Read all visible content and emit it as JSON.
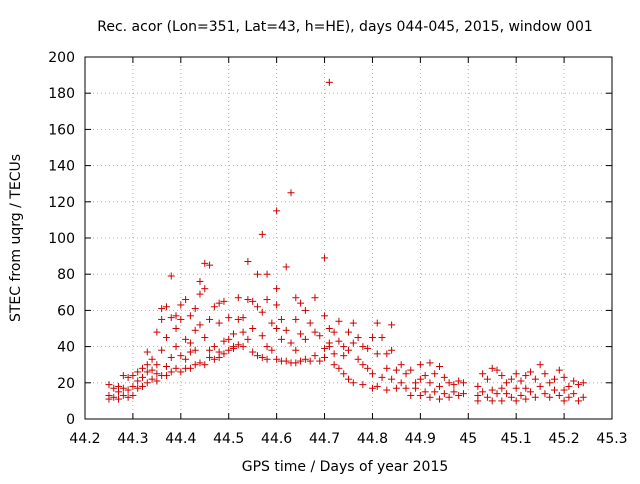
{
  "chart_data": {
    "type": "scatter",
    "title": "Rec. acor (Lon=351, Lat=43, h=HE), days 044-045, 2015, window 001",
    "xlabel": "GPS time / Days of year 2015",
    "ylabel": "STEC from uqrg / TECUs",
    "xlim": [
      44.2,
      45.3
    ],
    "ylim": [
      0,
      200
    ],
    "xticks": [
      "44.2",
      "44.3",
      "44.4",
      "44.5",
      "44.6",
      "44.7",
      "44.8",
      "44.9",
      "45",
      "45.1",
      "45.2",
      "45.3"
    ],
    "yticks": [
      "0",
      "20",
      "40",
      "60",
      "80",
      "100",
      "120",
      "140",
      "160",
      "180",
      "200"
    ],
    "grid": true,
    "marker": "+",
    "color": "#cc0000",
    "series": [
      {
        "name": "STEC",
        "points": [
          [
            44.25,
            19
          ],
          [
            44.25,
            13
          ],
          [
            44.25,
            11
          ],
          [
            44.26,
            17
          ],
          [
            44.26,
            12
          ],
          [
            44.27,
            15
          ],
          [
            44.27,
            11
          ],
          [
            44.27,
            18
          ],
          [
            44.28,
            24
          ],
          [
            44.28,
            13
          ],
          [
            44.28,
            17
          ],
          [
            44.29,
            23
          ],
          [
            44.29,
            12
          ],
          [
            44.29,
            16
          ],
          [
            44.3,
            24
          ],
          [
            44.3,
            13
          ],
          [
            44.3,
            18
          ],
          [
            44.31,
            17
          ],
          [
            44.31,
            21
          ],
          [
            44.31,
            26
          ],
          [
            44.32,
            18
          ],
          [
            44.32,
            23
          ],
          [
            44.32,
            28
          ],
          [
            44.33,
            20
          ],
          [
            44.33,
            26
          ],
          [
            44.33,
            30
          ],
          [
            44.33,
            37
          ],
          [
            44.34,
            22
          ],
          [
            44.34,
            27
          ],
          [
            44.34,
            33
          ],
          [
            44.35,
            21
          ],
          [
            44.35,
            25
          ],
          [
            44.35,
            48
          ],
          [
            44.35,
            30
          ],
          [
            44.36,
            61
          ],
          [
            44.36,
            55
          ],
          [
            44.36,
            24
          ],
          [
            44.36,
            38
          ],
          [
            44.37,
            62
          ],
          [
            44.37,
            45
          ],
          [
            44.37,
            24
          ],
          [
            44.37,
            29
          ],
          [
            44.38,
            79
          ],
          [
            44.38,
            56
          ],
          [
            44.38,
            26
          ],
          [
            44.38,
            34
          ],
          [
            44.39,
            50
          ],
          [
            44.39,
            28
          ],
          [
            44.39,
            40
          ],
          [
            44.39,
            57
          ],
          [
            44.4,
            63
          ],
          [
            44.4,
            55
          ],
          [
            44.4,
            26
          ],
          [
            44.4,
            35
          ],
          [
            44.41,
            66
          ],
          [
            44.41,
            44
          ],
          [
            44.41,
            28
          ],
          [
            44.41,
            33
          ],
          [
            44.42,
            57
          ],
          [
            44.42,
            42
          ],
          [
            44.42,
            28
          ],
          [
            44.42,
            37
          ],
          [
            44.43,
            61
          ],
          [
            44.43,
            49
          ],
          [
            44.43,
            30
          ],
          [
            44.43,
            38
          ],
          [
            44.44,
            76
          ],
          [
            44.44,
            69
          ],
          [
            44.44,
            52
          ],
          [
            44.44,
            31
          ],
          [
            44.45,
            86
          ],
          [
            44.45,
            72
          ],
          [
            44.45,
            45
          ],
          [
            44.45,
            30
          ],
          [
            44.46,
            85
          ],
          [
            44.46,
            55
          ],
          [
            44.46,
            38
          ],
          [
            44.46,
            34
          ],
          [
            44.47,
            62
          ],
          [
            44.47,
            40
          ],
          [
            44.47,
            33
          ],
          [
            44.48,
            64
          ],
          [
            44.48,
            53
          ],
          [
            44.48,
            37
          ],
          [
            44.48,
            34
          ],
          [
            44.49,
            65
          ],
          [
            44.49,
            43
          ],
          [
            44.49,
            36
          ],
          [
            44.5,
            56
          ],
          [
            44.5,
            44
          ],
          [
            44.5,
            38
          ],
          [
            44.51,
            47
          ],
          [
            44.51,
            40
          ],
          [
            44.51,
            39
          ],
          [
            44.52,
            67
          ],
          [
            44.52,
            55
          ],
          [
            44.52,
            41
          ],
          [
            44.53,
            56
          ],
          [
            44.53,
            48
          ],
          [
            44.53,
            40
          ],
          [
            44.54,
            87
          ],
          [
            44.54,
            66
          ],
          [
            44.54,
            44
          ],
          [
            44.55,
            65
          ],
          [
            44.55,
            50
          ],
          [
            44.55,
            37
          ],
          [
            44.56,
            80
          ],
          [
            44.56,
            62
          ],
          [
            44.56,
            35
          ],
          [
            44.57,
            102
          ],
          [
            44.57,
            59
          ],
          [
            44.57,
            46
          ],
          [
            44.57,
            34
          ],
          [
            44.58,
            80
          ],
          [
            44.58,
            66
          ],
          [
            44.58,
            40
          ],
          [
            44.58,
            33
          ],
          [
            44.59,
            53
          ],
          [
            44.59,
            38
          ],
          [
            44.6,
            115
          ],
          [
            44.6,
            72
          ],
          [
            44.6,
            63
          ],
          [
            44.6,
            50
          ],
          [
            44.6,
            33
          ],
          [
            44.61,
            55
          ],
          [
            44.61,
            44
          ],
          [
            44.61,
            32
          ],
          [
            44.62,
            84
          ],
          [
            44.62,
            49
          ],
          [
            44.62,
            32
          ],
          [
            44.63,
            125
          ],
          [
            44.63,
            42
          ],
          [
            44.63,
            31
          ],
          [
            44.64,
            67
          ],
          [
            44.64,
            55
          ],
          [
            44.64,
            38
          ],
          [
            44.64,
            31
          ],
          [
            44.65,
            64
          ],
          [
            44.65,
            47
          ],
          [
            44.65,
            32
          ],
          [
            44.66,
            60
          ],
          [
            44.66,
            44
          ],
          [
            44.66,
            33
          ],
          [
            44.67,
            53
          ],
          [
            44.67,
            32
          ],
          [
            44.68,
            67
          ],
          [
            44.68,
            48
          ],
          [
            44.68,
            35
          ],
          [
            44.69,
            46
          ],
          [
            44.69,
            32
          ],
          [
            44.7,
            89
          ],
          [
            44.7,
            57
          ],
          [
            44.7,
            39
          ],
          [
            44.7,
            34
          ],
          [
            44.71,
            186
          ],
          [
            44.71,
            50
          ],
          [
            44.71,
            42
          ],
          [
            44.71,
            40
          ],
          [
            44.72,
            48
          ],
          [
            44.72,
            36
          ],
          [
            44.72,
            30
          ],
          [
            44.73,
            54
          ],
          [
            44.73,
            43
          ],
          [
            44.73,
            28
          ],
          [
            44.74,
            40
          ],
          [
            44.74,
            35
          ],
          [
            44.74,
            25
          ],
          [
            44.75,
            48
          ],
          [
            44.75,
            38
          ],
          [
            44.75,
            22
          ],
          [
            44.76,
            53
          ],
          [
            44.76,
            42
          ],
          [
            44.76,
            20
          ],
          [
            44.77,
            45
          ],
          [
            44.77,
            33
          ],
          [
            44.78,
            40
          ],
          [
            44.78,
            30
          ],
          [
            44.78,
            19
          ],
          [
            44.79,
            39
          ],
          [
            44.79,
            28
          ],
          [
            44.8,
            45
          ],
          [
            44.8,
            25
          ],
          [
            44.8,
            17
          ],
          [
            44.81,
            53
          ],
          [
            44.81,
            36
          ],
          [
            44.81,
            18
          ],
          [
            44.82,
            45
          ],
          [
            44.82,
            23
          ],
          [
            44.83,
            36
          ],
          [
            44.83,
            28
          ],
          [
            44.83,
            16
          ],
          [
            44.84,
            52
          ],
          [
            44.84,
            38
          ],
          [
            44.84,
            22
          ],
          [
            44.85,
            27
          ],
          [
            44.85,
            17
          ],
          [
            44.86,
            30
          ],
          [
            44.86,
            20
          ],
          [
            44.87,
            25
          ],
          [
            44.87,
            17
          ],
          [
            44.88,
            27
          ],
          [
            44.88,
            13
          ],
          [
            44.89,
            20
          ],
          [
            44.89,
            17
          ],
          [
            44.9,
            30
          ],
          [
            44.9,
            22
          ],
          [
            44.9,
            13
          ],
          [
            44.91,
            24
          ],
          [
            44.91,
            15
          ],
          [
            44.92,
            31
          ],
          [
            44.92,
            20
          ],
          [
            44.92,
            12
          ],
          [
            44.93,
            25
          ],
          [
            44.93,
            15
          ],
          [
            44.94,
            29
          ],
          [
            44.94,
            18
          ],
          [
            44.94,
            11
          ],
          [
            44.95,
            23
          ],
          [
            44.95,
            14
          ],
          [
            44.96,
            20
          ],
          [
            44.96,
            12
          ],
          [
            44.97,
            19
          ],
          [
            44.97,
            15
          ],
          [
            44.98,
            21
          ],
          [
            44.98,
            13
          ],
          [
            44.99,
            20
          ],
          [
            44.99,
            14
          ],
          [
            45.02,
            18
          ],
          [
            45.02,
            13
          ],
          [
            45.02,
            10
          ],
          [
            45.03,
            25
          ],
          [
            45.03,
            15
          ],
          [
            45.04,
            22
          ],
          [
            45.04,
            12
          ],
          [
            45.05,
            28
          ],
          [
            45.05,
            16
          ],
          [
            45.05,
            10
          ],
          [
            45.06,
            27
          ],
          [
            45.06,
            14
          ],
          [
            45.07,
            24
          ],
          [
            45.07,
            17
          ],
          [
            45.07,
            10
          ],
          [
            45.08,
            20
          ],
          [
            45.08,
            14
          ],
          [
            45.09,
            22
          ],
          [
            45.09,
            12
          ],
          [
            45.1,
            25
          ],
          [
            45.1,
            17
          ],
          [
            45.1,
            10
          ],
          [
            45.11,
            21
          ],
          [
            45.11,
            13
          ],
          [
            45.12,
            24
          ],
          [
            45.12,
            17
          ],
          [
            45.12,
            11
          ],
          [
            45.13,
            26
          ],
          [
            45.13,
            15
          ],
          [
            45.14,
            22
          ],
          [
            45.14,
            12
          ],
          [
            45.15,
            30
          ],
          [
            45.15,
            18
          ],
          [
            45.16,
            25
          ],
          [
            45.16,
            14
          ],
          [
            45.17,
            20
          ],
          [
            45.17,
            12
          ],
          [
            45.18,
            22
          ],
          [
            45.18,
            16
          ],
          [
            45.19,
            27
          ],
          [
            45.19,
            13
          ],
          [
            45.2,
            23
          ],
          [
            45.2,
            16
          ],
          [
            45.2,
            10
          ],
          [
            45.21,
            18
          ],
          [
            45.21,
            12
          ],
          [
            45.22,
            21
          ],
          [
            45.22,
            14
          ],
          [
            45.23,
            19
          ],
          [
            45.23,
            10
          ],
          [
            45.24,
            20
          ],
          [
            45.24,
            12
          ]
        ]
      }
    ]
  }
}
